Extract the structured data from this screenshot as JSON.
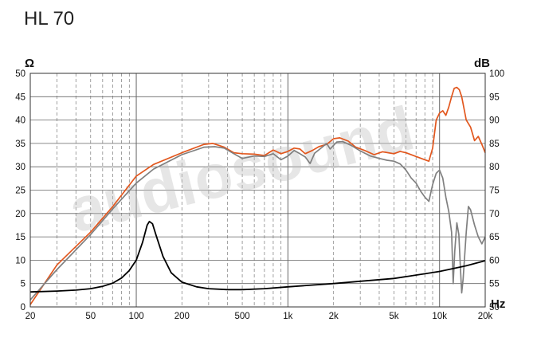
{
  "chart_data": {
    "type": "line",
    "title": "HL 70",
    "x_scale": "log",
    "xlim": [
      20,
      20000
    ],
    "x_ticks": [
      {
        "value": 20,
        "label": "20"
      },
      {
        "value": 50,
        "label": "50"
      },
      {
        "value": 100,
        "label": "100"
      },
      {
        "value": 200,
        "label": "200"
      },
      {
        "value": 500,
        "label": "500"
      },
      {
        "value": 1000,
        "label": "1k"
      },
      {
        "value": 2000,
        "label": "2k"
      },
      {
        "value": 5000,
        "label": "5k"
      },
      {
        "value": 10000,
        "label": "10k"
      },
      {
        "value": 20000,
        "label": "20k"
      }
    ],
    "x_unit": "Hz",
    "y_left": {
      "unit": "Ω",
      "lim": [
        0,
        50
      ],
      "ticks": [
        "0",
        "5",
        "10",
        "15",
        "20",
        "25",
        "30",
        "35",
        "40",
        "45",
        "50"
      ]
    },
    "y_right": {
      "unit": "dB",
      "lim": [
        50,
        100
      ],
      "ticks": [
        "50",
        "55",
        "60",
        "65",
        "70",
        "75",
        "80",
        "85",
        "90",
        "95",
        "100"
      ]
    },
    "grid": true,
    "watermark": "audiosound",
    "series": [
      {
        "axis": "right",
        "color": "#e2571e",
        "points": [
          [
            20,
            50.5
          ],
          [
            30,
            59
          ],
          [
            50,
            66
          ],
          [
            70,
            71.5
          ],
          [
            100,
            78
          ],
          [
            130,
            80.5
          ],
          [
            200,
            83
          ],
          [
            280,
            84.8
          ],
          [
            320,
            85
          ],
          [
            380,
            84.2
          ],
          [
            440,
            83
          ],
          [
            500,
            82.8
          ],
          [
            600,
            82.7
          ],
          [
            700,
            82.4
          ],
          [
            800,
            83.6
          ],
          [
            900,
            82.8
          ],
          [
            1000,
            83.3
          ],
          [
            1100,
            84
          ],
          [
            1200,
            83.8
          ],
          [
            1300,
            82.8
          ],
          [
            1450,
            83.5
          ],
          [
            1600,
            84.3
          ],
          [
            1800,
            84.8
          ],
          [
            2000,
            86
          ],
          [
            2200,
            86.2
          ],
          [
            2500,
            85.5
          ],
          [
            2800,
            84.2
          ],
          [
            3200,
            83.5
          ],
          [
            3700,
            82.6
          ],
          [
            4200,
            83.2
          ],
          [
            5000,
            82.8
          ],
          [
            5500,
            83.3
          ],
          [
            6000,
            83
          ],
          [
            7000,
            82.2
          ],
          [
            8000,
            81.5
          ],
          [
            8500,
            81.2
          ],
          [
            9000,
            84
          ],
          [
            9500,
            90
          ],
          [
            10000,
            91.5
          ],
          [
            10500,
            92
          ],
          [
            11000,
            91
          ],
          [
            11500,
            92.8
          ],
          [
            12000,
            95
          ],
          [
            12500,
            96.8
          ],
          [
            13000,
            97
          ],
          [
            13500,
            96.5
          ],
          [
            14000,
            95
          ],
          [
            15000,
            90
          ],
          [
            16000,
            88.5
          ],
          [
            17000,
            85.6
          ],
          [
            18000,
            86.5
          ],
          [
            19000,
            84.8
          ],
          [
            20000,
            83
          ]
        ]
      },
      {
        "axis": "right",
        "color": "#808080",
        "points": [
          [
            20,
            51.5
          ],
          [
            30,
            58
          ],
          [
            50,
            65.5
          ],
          [
            70,
            71
          ],
          [
            100,
            76.5
          ],
          [
            130,
            79.5
          ],
          [
            200,
            82.6
          ],
          [
            280,
            84.2
          ],
          [
            330,
            84.3
          ],
          [
            380,
            84
          ],
          [
            440,
            82.8
          ],
          [
            500,
            81.8
          ],
          [
            600,
            82.3
          ],
          [
            700,
            82.2
          ],
          [
            800,
            82.8
          ],
          [
            900,
            81.5
          ],
          [
            1000,
            82.3
          ],
          [
            1100,
            83.5
          ],
          [
            1200,
            82.8
          ],
          [
            1300,
            82.1
          ],
          [
            1400,
            80.7
          ],
          [
            1500,
            82.9
          ],
          [
            1700,
            84.3
          ],
          [
            1800,
            85
          ],
          [
            1900,
            83.8
          ],
          [
            2100,
            85.3
          ],
          [
            2300,
            85.4
          ],
          [
            2600,
            84.6
          ],
          [
            3000,
            83.4
          ],
          [
            3500,
            82.3
          ],
          [
            4000,
            81.8
          ],
          [
            4500,
            81.4
          ],
          [
            5000,
            81.2
          ],
          [
            5500,
            80.6
          ],
          [
            6000,
            79.3
          ],
          [
            6500,
            77.6
          ],
          [
            7000,
            76.5
          ],
          [
            7500,
            74.8
          ],
          [
            8000,
            73.5
          ],
          [
            8500,
            72.6
          ],
          [
            9000,
            76.2
          ],
          [
            9500,
            78.6
          ],
          [
            10000,
            79.3
          ],
          [
            10500,
            77.6
          ],
          [
            11000,
            73.5
          ],
          [
            11500,
            70.4
          ],
          [
            12000,
            66
          ],
          [
            12300,
            55
          ],
          [
            12600,
            62
          ],
          [
            13000,
            68
          ],
          [
            13400,
            65.5
          ],
          [
            13700,
            59
          ],
          [
            14000,
            53
          ],
          [
            14300,
            56
          ],
          [
            15000,
            66
          ],
          [
            15500,
            71.5
          ],
          [
            16000,
            70.8
          ],
          [
            17000,
            67.5
          ],
          [
            18000,
            65
          ],
          [
            19000,
            63.5
          ],
          [
            20000,
            65
          ]
        ]
      },
      {
        "axis": "left",
        "color": "#000000",
        "points": [
          [
            20,
            3.2
          ],
          [
            30,
            3.4
          ],
          [
            40,
            3.6
          ],
          [
            50,
            3.9
          ],
          [
            60,
            4.4
          ],
          [
            70,
            5.1
          ],
          [
            80,
            6.2
          ],
          [
            90,
            7.8
          ],
          [
            100,
            10
          ],
          [
            110,
            13.8
          ],
          [
            118,
            17.5
          ],
          [
            122,
            18.3
          ],
          [
            128,
            17.8
          ],
          [
            135,
            15.4
          ],
          [
            150,
            10.8
          ],
          [
            170,
            7.3
          ],
          [
            200,
            5.3
          ],
          [
            250,
            4.3
          ],
          [
            300,
            3.9
          ],
          [
            400,
            3.7
          ],
          [
            500,
            3.7
          ],
          [
            700,
            3.9
          ],
          [
            1000,
            4.3
          ],
          [
            2000,
            5
          ],
          [
            3000,
            5.5
          ],
          [
            5000,
            6.1
          ],
          [
            8000,
            7.1
          ],
          [
            10000,
            7.6
          ],
          [
            15000,
            8.8
          ],
          [
            20000,
            9.9
          ]
        ]
      }
    ]
  }
}
